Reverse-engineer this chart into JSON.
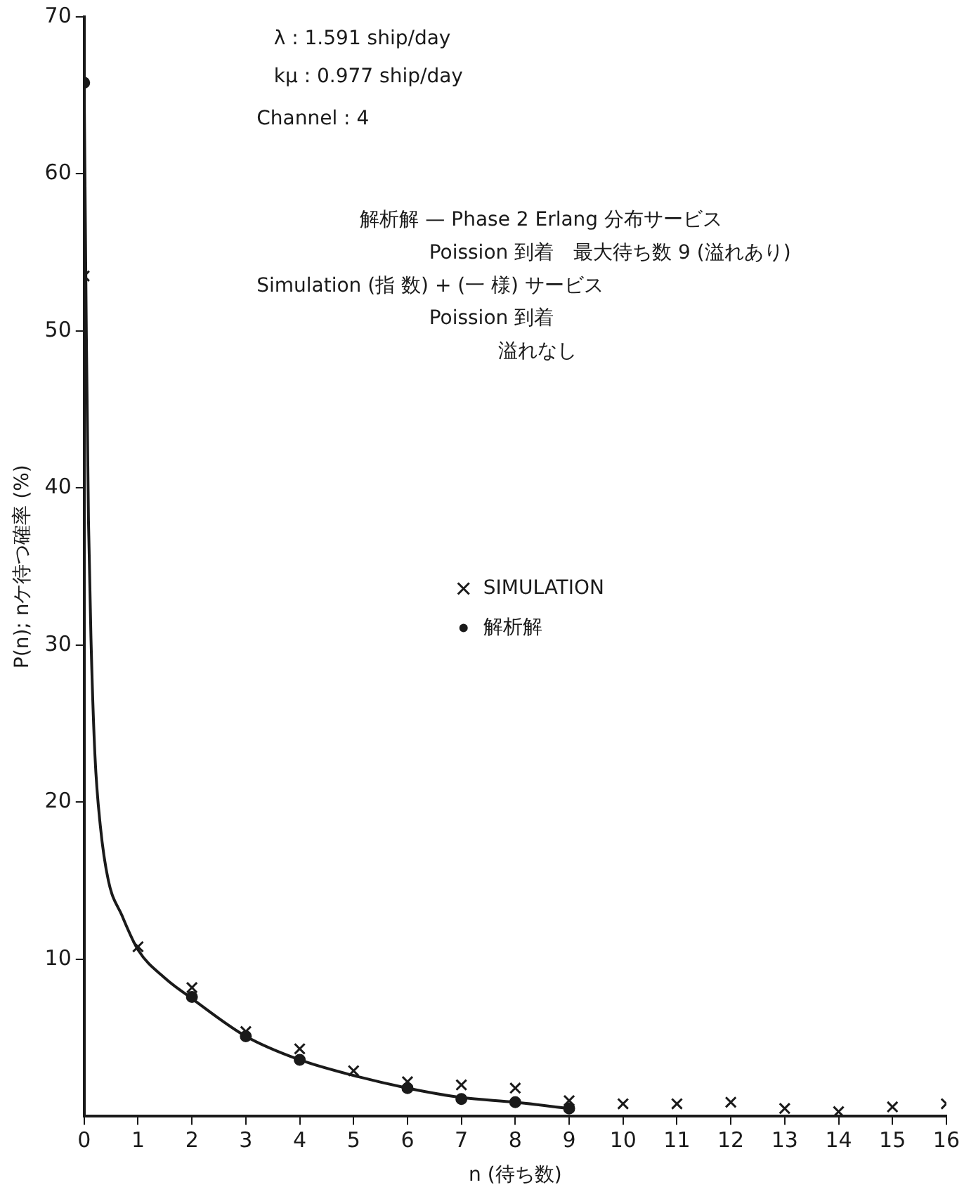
{
  "chart_data": {
    "type": "line",
    "xlabel": "n (待ち数)",
    "ylabel": "P(n); nケ待つ確率 (%)",
    "annotations": [
      "λ : 1.591 ship/day",
      "kμ : 0.977 ship/day",
      "Channel : 4",
      "解析解 — Phase 2 Erlang 分布サービス",
      "Poission 到着　最大待ち数 9 (溢れあり)",
      "Simulation (指 数) + (一 様) サービス",
      "Poission 到着",
      "溢れなし"
    ],
    "series": [
      {
        "name": "SIMULATION",
        "type": "scatter",
        "marker": "cross",
        "color": "#1a1a1a",
        "x": [
          0,
          1,
          2,
          3,
          4,
          5,
          6,
          7,
          8,
          9,
          10,
          11,
          12,
          13,
          14,
          15,
          16
        ],
        "values": [
          53.5,
          10.8,
          8.2,
          5.4,
          4.3,
          2.9,
          2.2,
          2.0,
          1.8,
          1.0,
          0.8,
          0.8,
          0.9,
          0.5,
          0.3,
          0.6,
          0.8
        ]
      },
      {
        "name": "解析解",
        "type": "scatter",
        "marker": "circle",
        "color": "#1a1a1a",
        "x": [
          0,
          2,
          3,
          4,
          6,
          7,
          8,
          9
        ],
        "values": [
          65.8,
          7.6,
          5.1,
          3.6,
          1.8,
          1.1,
          0.9,
          0.5
        ]
      },
      {
        "marker": "none",
        "line_style": "solid",
        "color": "#1a1a1a",
        "x": [
          0,
          0.04,
          0.08,
          0.13,
          0.2,
          0.3,
          0.45,
          0.7,
          1,
          1.5,
          2,
          3,
          4,
          5,
          6,
          7,
          8,
          9
        ],
        "values": [
          65.8,
          50,
          38,
          30,
          23,
          18.5,
          15,
          12.8,
          10.6,
          8.8,
          7.5,
          5.1,
          3.6,
          2.6,
          1.8,
          1.2,
          0.9,
          0.5
        ]
      }
    ],
    "xlim": [
      0,
      16
    ],
    "xticks": [
      0,
      1,
      2,
      3,
      4,
      5,
      6,
      7,
      8,
      9,
      10,
      11,
      12,
      13,
      14,
      15,
      16
    ],
    "ylim": [
      0,
      70
    ],
    "yticks": [
      10,
      20,
      30,
      40,
      50,
      60,
      70
    ],
    "grid": false,
    "legend": "right"
  }
}
